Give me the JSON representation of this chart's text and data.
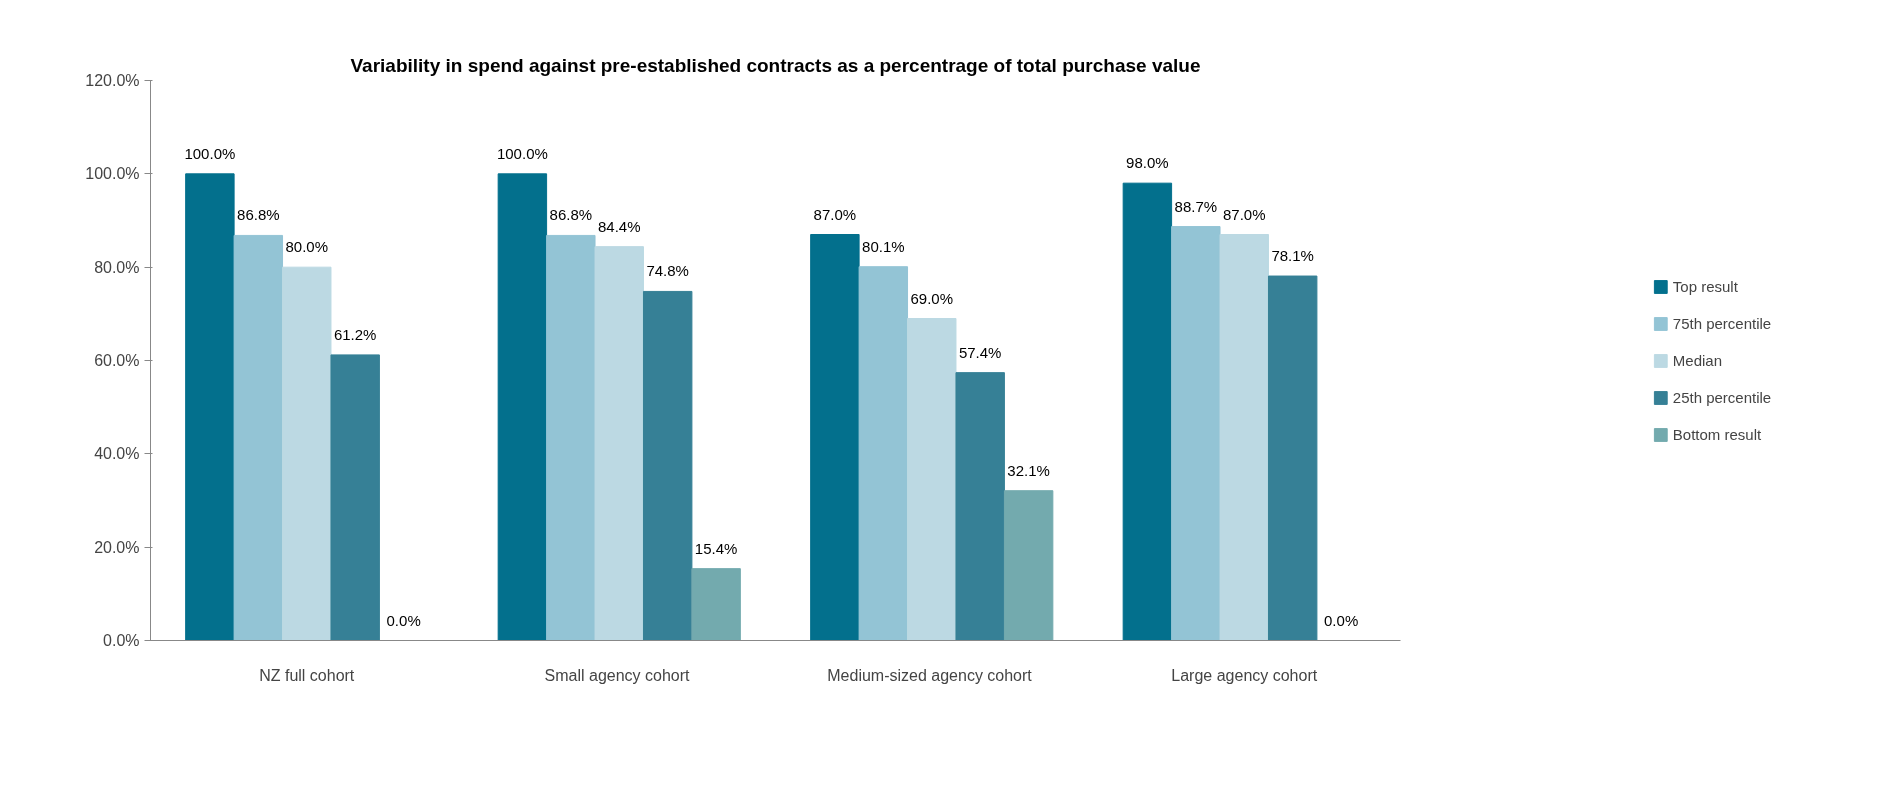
{
  "chart_data": {
    "type": "bar",
    "title": "Variability in spend against pre-established contracts as a percentrage of total purchase value",
    "categories": [
      "NZ full cohort",
      "Small agency  cohort",
      "Medium-sized agency  cohort",
      "Large agency cohort"
    ],
    "series": [
      {
        "name": "Top result",
        "color": "#03708d",
        "values": [
          100.0,
          100.0,
          87.0,
          98.0
        ],
        "value_labels": [
          "100.0%",
          "100.0%",
          "87.0%",
          "98.0%"
        ]
      },
      {
        "name": "75th percentile",
        "color": "#93c4d5",
        "values": [
          86.8,
          86.8,
          80.1,
          88.7
        ],
        "value_labels": [
          "86.8%",
          "86.8%",
          "80.1%",
          "88.7%"
        ]
      },
      {
        "name": "Median",
        "color": "#bcd9e3",
        "values": [
          80.0,
          84.4,
          69.0,
          87.0
        ],
        "value_labels": [
          "80.0%",
          "84.4%",
          "69.0%",
          "87.0%"
        ]
      },
      {
        "name": "25th percentile",
        "color": "#368096",
        "values": [
          61.2,
          74.8,
          57.4,
          78.1
        ],
        "value_labels": [
          "61.2%",
          "74.8%",
          "57.4%",
          "78.1%"
        ]
      },
      {
        "name": "Bottom result",
        "color": "#73aaae",
        "values": [
          0.0,
          15.4,
          32.1,
          0.0
        ],
        "value_labels": [
          "0.0%",
          "15.4%",
          "32.1%",
          "0.0%"
        ]
      }
    ],
    "ylim": [
      0,
      120
    ],
    "yticks": [
      {
        "value": 0,
        "label": "0.0%"
      },
      {
        "value": 20,
        "label": "20.0%"
      },
      {
        "value": 40,
        "label": "40.0%"
      },
      {
        "value": 60,
        "label": "60.0%"
      },
      {
        "value": 80,
        "label": "80.0%"
      },
      {
        "value": 100,
        "label": "100.0%"
      },
      {
        "value": 120,
        "label": "120.0%"
      }
    ],
    "grid": false,
    "legend": "right"
  }
}
